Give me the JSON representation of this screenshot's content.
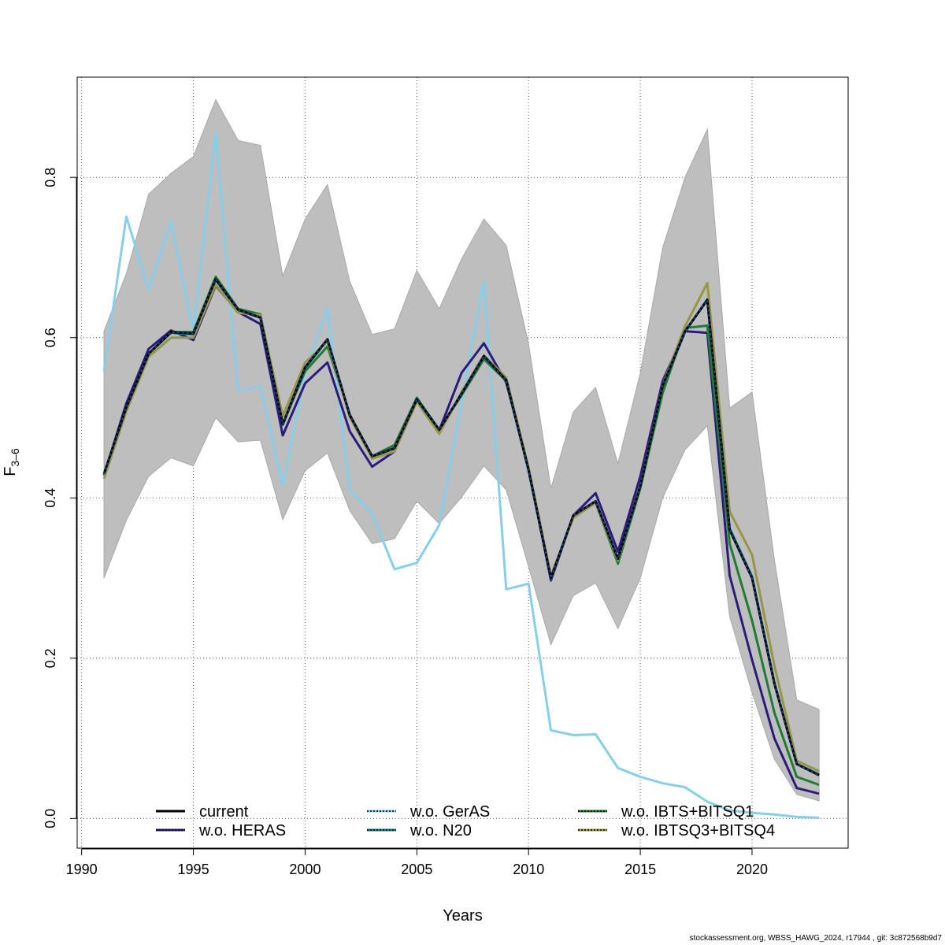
{
  "chart_data": {
    "type": "line",
    "xlabel": "Years",
    "ylabel_main": "F",
    "ylabel_sub": "3–6",
    "xlim": [
      1989.8,
      2024.3
    ],
    "ylim": [
      -0.037,
      0.925
    ],
    "x_ticks": [
      1990,
      1995,
      2000,
      2005,
      2010,
      2015,
      2020
    ],
    "x_tick_labels": [
      "1990",
      "1995",
      "2000",
      "2005",
      "2010",
      "2015",
      "2020"
    ],
    "y_ticks": [
      0.0,
      0.2,
      0.4,
      0.6,
      0.8
    ],
    "y_tick_labels": [
      "0.0",
      "0.2",
      "0.4",
      "0.6",
      "0.8"
    ],
    "grid": true,
    "legend_position": "bottom",
    "x": [
      1991,
      1992,
      1993,
      1994,
      1995,
      1996,
      1997,
      1998,
      1999,
      2000,
      2001,
      2002,
      2003,
      2004,
      2005,
      2006,
      2007,
      2008,
      2009,
      2010,
      2011,
      2012,
      2013,
      2014,
      2015,
      2016,
      2017,
      2018,
      2019,
      2020,
      2021,
      2022,
      2023
    ],
    "band": {
      "color": "#bebebe",
      "upper": [
        0.608,
        0.68,
        0.779,
        0.805,
        0.826,
        0.897,
        0.846,
        0.84,
        0.677,
        0.748,
        0.791,
        0.67,
        0.604,
        0.611,
        0.684,
        0.636,
        0.698,
        0.748,
        0.715,
        0.592,
        0.412,
        0.507,
        0.538,
        0.443,
        0.556,
        0.712,
        0.8,
        0.86,
        0.512,
        0.532,
        0.323,
        0.148,
        0.136
      ],
      "lower": [
        0.3,
        0.372,
        0.427,
        0.45,
        0.44,
        0.5,
        0.47,
        0.472,
        0.373,
        0.434,
        0.456,
        0.384,
        0.343,
        0.349,
        0.396,
        0.368,
        0.401,
        0.44,
        0.41,
        0.314,
        0.217,
        0.278,
        0.294,
        0.237,
        0.3,
        0.4,
        0.46,
        0.49,
        0.252,
        0.157,
        0.074,
        0.03,
        0.022
      ]
    },
    "series": [
      {
        "name": "current",
        "color": "#000000",
        "dashed": false,
        "values": [
          0.43,
          0.513,
          0.58,
          0.607,
          0.605,
          0.673,
          0.635,
          0.625,
          0.492,
          0.563,
          0.598,
          0.503,
          0.452,
          0.462,
          0.523,
          0.485,
          0.53,
          0.577,
          0.547,
          0.435,
          0.3,
          0.378,
          0.396,
          0.324,
          0.415,
          0.54,
          0.608,
          0.647,
          0.36,
          0.3,
          0.168,
          0.068,
          0.054
        ]
      },
      {
        "name": "w.o. HERAS",
        "color": "#2c1b7a",
        "dashed": false,
        "values": [
          0.428,
          0.518,
          0.586,
          0.609,
          0.597,
          0.665,
          0.632,
          0.617,
          0.478,
          0.543,
          0.569,
          0.483,
          0.439,
          0.458,
          0.525,
          0.484,
          0.556,
          0.593,
          0.544,
          0.437,
          0.297,
          0.378,
          0.406,
          0.333,
          0.427,
          0.546,
          0.608,
          0.606,
          0.303,
          0.198,
          0.1,
          0.038,
          0.031
        ]
      },
      {
        "name": "w.o. GerAS",
        "color": "#87ceeb",
        "dashed": false,
        "values": [
          0.558,
          0.751,
          0.66,
          0.745,
          0.608,
          0.856,
          0.534,
          0.539,
          0.415,
          0.556,
          0.637,
          0.41,
          0.38,
          0.311,
          0.319,
          0.366,
          0.518,
          0.671,
          0.286,
          0.293,
          0.11,
          0.104,
          0.105,
          0.063,
          0.052,
          0.044,
          0.039,
          0.021,
          0.01,
          0.007,
          0.005,
          0.002,
          0.001
        ]
      },
      {
        "name": "w.o. GerAS",
        "color": "#1f3f8f",
        "dashed": true,
        "values": [
          0.43,
          0.513,
          0.58,
          0.607,
          0.605,
          0.673,
          0.635,
          0.625,
          0.492,
          0.563,
          0.598,
          0.503,
          0.452,
          0.462,
          0.523,
          0.485,
          0.53,
          0.577,
          0.547,
          0.435,
          0.3,
          0.378,
          0.396,
          0.324,
          0.415,
          0.54,
          0.608,
          0.647,
          0.36,
          0.3,
          0.168,
          0.068,
          0.054
        ]
      },
      {
        "name": "w.o. N20",
        "color": "#0f7e82",
        "dashed": false,
        "values": [
          0.429,
          0.512,
          0.58,
          0.606,
          0.604,
          0.672,
          0.634,
          0.625,
          0.491,
          0.562,
          0.597,
          0.502,
          0.451,
          0.462,
          0.522,
          0.484,
          0.53,
          0.575,
          0.546,
          0.434,
          0.299,
          0.377,
          0.395,
          0.323,
          0.414,
          0.539,
          0.607,
          0.648,
          0.362,
          0.302,
          0.17,
          0.068,
          0.055
        ]
      },
      {
        "name": "w.o. IBTS+BITSQ1",
        "color": "#1e7d32",
        "dashed": false,
        "values": [
          0.43,
          0.513,
          0.58,
          0.607,
          0.607,
          0.676,
          0.636,
          0.629,
          0.492,
          0.558,
          0.589,
          0.504,
          0.452,
          0.466,
          0.525,
          0.485,
          0.528,
          0.573,
          0.546,
          0.435,
          0.301,
          0.377,
          0.394,
          0.318,
          0.412,
          0.531,
          0.612,
          0.615,
          0.343,
          0.247,
          0.132,
          0.052,
          0.042
        ]
      },
      {
        "name": "w.o. IBTSQ3+BITSQ4",
        "color": "#969646",
        "dashed": false,
        "values": [
          0.424,
          0.508,
          0.576,
          0.6,
          0.6,
          0.666,
          0.631,
          0.628,
          0.502,
          0.569,
          0.595,
          0.501,
          0.449,
          0.458,
          0.52,
          0.48,
          0.532,
          0.578,
          0.55,
          0.438,
          0.303,
          0.375,
          0.394,
          0.322,
          0.416,
          0.541,
          0.614,
          0.668,
          0.383,
          0.329,
          0.191,
          0.072,
          0.059
        ]
      }
    ],
    "legend": [
      {
        "label": "current",
        "line": "#000000",
        "dash": null
      },
      {
        "label": "w.o. HERAS",
        "line": "#2c1b7a",
        "dash": "#000000"
      },
      {
        "label": "w.o. GerAS",
        "line": "#87ceeb",
        "dash": "#000000"
      },
      {
        "label": "w.o. N20",
        "line": "#0f7e82",
        "dash": "#000000"
      },
      {
        "label": "w.o. IBTS+BITSQ1",
        "line": "#1e7d32",
        "dash": "#000000"
      },
      {
        "label": "w.o. IBTSQ3+BITSQ4",
        "line": "#969646",
        "dash": "#000000"
      }
    ]
  },
  "footer": "stockassessment.org, WBSS_HAWG_2024, r17944 , git: 3c872568b9d7"
}
